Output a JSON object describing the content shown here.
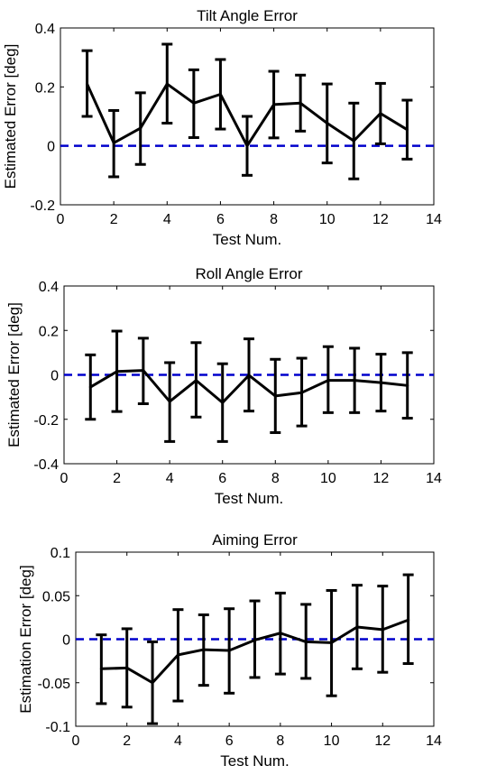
{
  "chart_data": [
    {
      "type": "line",
      "title": "Tilt Angle Error",
      "xlabel": "Test Num.",
      "ylabel": "Estimated Error [deg]",
      "xlim": [
        0,
        14
      ],
      "ylim": [
        -0.2,
        0.4
      ],
      "xticks": [
        "0",
        "2",
        "4",
        "6",
        "8",
        "10",
        "12",
        "14"
      ],
      "yticks": [
        "-0.2",
        "0",
        "0.2",
        "0.4"
      ],
      "grid": false,
      "reference_line": {
        "y": 0,
        "style": "dashed",
        "color": "#0000cc"
      },
      "series": [
        {
          "line_color": "#000000",
          "x": [
            1,
            2,
            3,
            4,
            5,
            6,
            7,
            8,
            9,
            10,
            11,
            12,
            13
          ],
          "y": [
            0.21,
            0.01,
            0.06,
            0.21,
            0.145,
            0.175,
            0.0,
            0.14,
            0.145,
            0.077,
            0.017,
            0.11,
            0.055
          ],
          "err_low": [
            0.1,
            -0.105,
            -0.063,
            0.077,
            0.028,
            0.057,
            -0.1,
            0.027,
            0.05,
            -0.058,
            -0.112,
            0.007,
            -0.045
          ],
          "err_high": [
            0.323,
            0.12,
            0.18,
            0.345,
            0.258,
            0.293,
            0.1,
            0.253,
            0.24,
            0.21,
            0.145,
            0.212,
            0.155
          ]
        }
      ]
    },
    {
      "type": "line",
      "title": "Roll Angle Error",
      "xlabel": "Test Num.",
      "ylabel": "Estimated Error [deg]",
      "xlim": [
        0,
        14
      ],
      "ylim": [
        -0.4,
        0.4
      ],
      "xticks": [
        "0",
        "2",
        "4",
        "6",
        "8",
        "10",
        "12",
        "14"
      ],
      "yticks": [
        "-0.4",
        "-0.2",
        "0",
        "0.2",
        "0.4"
      ],
      "grid": false,
      "reference_line": {
        "y": 0,
        "style": "dashed",
        "color": "#0000cc"
      },
      "series": [
        {
          "line_color": "#000000",
          "x": [
            1,
            2,
            3,
            4,
            5,
            6,
            7,
            8,
            9,
            10,
            11,
            12,
            13
          ],
          "y": [
            -0.055,
            0.015,
            0.02,
            -0.12,
            -0.025,
            -0.125,
            -0.002,
            -0.095,
            -0.08,
            -0.025,
            -0.025,
            -0.035,
            -0.048
          ],
          "err_low": [
            -0.2,
            -0.165,
            -0.13,
            -0.3,
            -0.19,
            -0.3,
            -0.163,
            -0.26,
            -0.23,
            -0.17,
            -0.17,
            -0.163,
            -0.195
          ],
          "err_high": [
            0.09,
            0.197,
            0.165,
            0.055,
            0.145,
            0.05,
            0.162,
            0.07,
            0.075,
            0.127,
            0.12,
            0.093,
            0.1
          ]
        }
      ]
    },
    {
      "type": "line",
      "title": "Aiming Error",
      "xlabel": "Test Num.",
      "ylabel": "Estimation Error [deg]",
      "xlim": [
        0,
        14
      ],
      "ylim": [
        -0.1,
        0.1
      ],
      "xticks": [
        "0",
        "2",
        "4",
        "6",
        "8",
        "10",
        "12",
        "14"
      ],
      "yticks": [
        "-0.1",
        "-0.05",
        "0",
        "0.05",
        "0.1"
      ],
      "grid": false,
      "reference_line": {
        "y": 0,
        "style": "dashed",
        "color": "#0000cc"
      },
      "series": [
        {
          "line_color": "#000000",
          "x": [
            1,
            2,
            3,
            4,
            5,
            6,
            7,
            8,
            9,
            10,
            11,
            12,
            13
          ],
          "y": [
            -0.034,
            -0.033,
            -0.05,
            -0.018,
            -0.012,
            -0.013,
            -0.001,
            0.007,
            -0.003,
            -0.004,
            0.014,
            0.011,
            0.022
          ],
          "err_low": [
            -0.074,
            -0.078,
            -0.097,
            -0.071,
            -0.053,
            -0.062,
            -0.044,
            -0.04,
            -0.045,
            -0.065,
            -0.034,
            -0.038,
            -0.028
          ],
          "err_high": [
            0.005,
            0.012,
            -0.003,
            0.034,
            0.028,
            0.035,
            0.044,
            0.053,
            0.04,
            0.056,
            0.062,
            0.061,
            0.074
          ]
        }
      ]
    }
  ]
}
